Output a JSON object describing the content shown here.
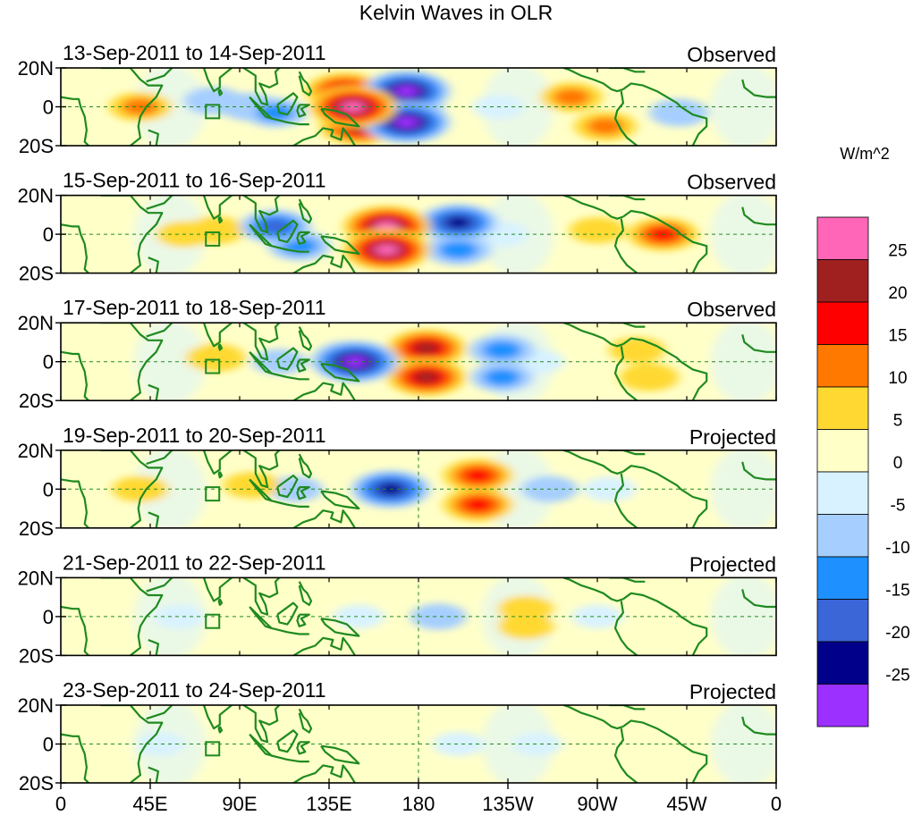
{
  "chart_data": {
    "type": "heatmap",
    "title": "Kelvin Waves in OLR",
    "units_label": "W/m^2",
    "x_ticks": [
      "0",
      "45E",
      "90E",
      "135E",
      "180",
      "135W",
      "90W",
      "45W",
      "0"
    ],
    "x_range_deg": [
      0,
      360
    ],
    "y_ticks": [
      "20N",
      "0",
      "20S"
    ],
    "y_range_deg": [
      -20,
      20
    ],
    "colorbar": {
      "labels": [
        "25",
        "20",
        "15",
        "10",
        "5",
        "0",
        "-5",
        "-10",
        "-15",
        "-20",
        "-25"
      ],
      "levels": [
        -25,
        -20,
        -15,
        -10,
        -5,
        0,
        5,
        10,
        15,
        20,
        25
      ],
      "colors": [
        "#9b30ff",
        "#00008b",
        "#3a66d8",
        "#1e90ff",
        "#a6cfff",
        "#d8f2ff",
        "#ffffc8",
        "#ffd932",
        "#ff7800",
        "#ff0000",
        "#a02020",
        "#ff66b8"
      ]
    },
    "panels": [
      {
        "dates": "13-Sep-2011 to 14-Sep-2011",
        "type": "Observed",
        "anomalies": [
          {
            "lon": 174,
            "lat": 8,
            "value": -25
          },
          {
            "lon": 174,
            "lat": -8,
            "value": -25
          },
          {
            "lon": 175,
            "lat": 0,
            "value": -15
          },
          {
            "lon": 147,
            "lat": 0,
            "value": 25
          },
          {
            "lon": 143,
            "lat": 8,
            "value": 20
          },
          {
            "lon": 150,
            "lat": -10,
            "value": 20
          },
          {
            "lon": 95,
            "lat": 0,
            "value": -8
          },
          {
            "lon": 108,
            "lat": -3,
            "value": -10
          },
          {
            "lon": 77,
            "lat": 3,
            "value": -8
          },
          {
            "lon": 40,
            "lat": 0,
            "value": 10
          },
          {
            "lon": 257,
            "lat": 5,
            "value": 10
          },
          {
            "lon": 274,
            "lat": -10,
            "value": 10
          },
          {
            "lon": 311,
            "lat": -3,
            "value": -8
          },
          {
            "lon": 220,
            "lat": 0,
            "value": -3
          }
        ]
      },
      {
        "dates": "15-Sep-2011 to 16-Sep-2011",
        "type": "Observed",
        "anomalies": [
          {
            "lon": 164,
            "lat": 4,
            "value": 25
          },
          {
            "lon": 164,
            "lat": -8,
            "value": 25
          },
          {
            "lon": 200,
            "lat": 6,
            "value": -20
          },
          {
            "lon": 200,
            "lat": -8,
            "value": -12
          },
          {
            "lon": 108,
            "lat": 4,
            "value": -15
          },
          {
            "lon": 120,
            "lat": -6,
            "value": -10
          },
          {
            "lon": 78,
            "lat": 2,
            "value": 8
          },
          {
            "lon": 222,
            "lat": 0,
            "value": -4
          },
          {
            "lon": 270,
            "lat": 2,
            "value": 6
          },
          {
            "lon": 303,
            "lat": 0,
            "value": 15
          },
          {
            "lon": 62,
            "lat": 0,
            "value": 6
          }
        ]
      },
      {
        "dates": "17-Sep-2011 to 18-Sep-2011",
        "type": "Observed",
        "anomalies": [
          {
            "lon": 148,
            "lat": 0,
            "value": -25
          },
          {
            "lon": 145,
            "lat": 2,
            "value": -15
          },
          {
            "lon": 184,
            "lat": 7,
            "value": 20
          },
          {
            "lon": 184,
            "lat": -8,
            "value": 20
          },
          {
            "lon": 222,
            "lat": 6,
            "value": -12
          },
          {
            "lon": 222,
            "lat": -8,
            "value": -10
          },
          {
            "lon": 78,
            "lat": 2,
            "value": 8
          },
          {
            "lon": 110,
            "lat": 0,
            "value": -5
          },
          {
            "lon": 290,
            "lat": 6,
            "value": 6
          },
          {
            "lon": 296,
            "lat": -8,
            "value": 8
          },
          {
            "lon": 240,
            "lat": 0,
            "value": -4
          },
          {
            "lon": 20,
            "lat": 0,
            "value": 4
          }
        ]
      },
      {
        "dates": "19-Sep-2011 to 20-Sep-2011",
        "type": "Projected",
        "anomalies": [
          {
            "lon": 166,
            "lat": 0,
            "value": -20
          },
          {
            "lon": 210,
            "lat": 7,
            "value": 15
          },
          {
            "lon": 210,
            "lat": -8,
            "value": 15
          },
          {
            "lon": 246,
            "lat": 0,
            "value": -6
          },
          {
            "lon": 118,
            "lat": 0,
            "value": -5
          },
          {
            "lon": 96,
            "lat": 2,
            "value": 6
          },
          {
            "lon": 276,
            "lat": 0,
            "value": -4
          },
          {
            "lon": 40,
            "lat": 0,
            "value": 6
          },
          {
            "lon": 300,
            "lat": 4,
            "value": 3
          }
        ]
      },
      {
        "dates": "21-Sep-2011 to 22-Sep-2011",
        "type": "Projected",
        "anomalies": [
          {
            "lon": 190,
            "lat": 0,
            "value": -6
          },
          {
            "lon": 234,
            "lat": 4,
            "value": 6
          },
          {
            "lon": 234,
            "lat": -5,
            "value": 6
          },
          {
            "lon": 150,
            "lat": 0,
            "value": -3
          },
          {
            "lon": 270,
            "lat": 0,
            "value": -3
          },
          {
            "lon": 60,
            "lat": 0,
            "value": -3
          },
          {
            "lon": 110,
            "lat": 0,
            "value": 3
          }
        ]
      },
      {
        "dates": "23-Sep-2011 to 24-Sep-2011",
        "type": "Projected",
        "anomalies": [
          {
            "lon": 200,
            "lat": 0,
            "value": -3
          },
          {
            "lon": 240,
            "lat": 0,
            "value": -2
          },
          {
            "lon": 140,
            "lat": 0,
            "value": 3
          },
          {
            "lon": 290,
            "lat": 0,
            "value": 3
          },
          {
            "lon": 50,
            "lat": 0,
            "value": -2
          },
          {
            "lon": 95,
            "lat": 0,
            "value": 2
          }
        ]
      }
    ]
  }
}
